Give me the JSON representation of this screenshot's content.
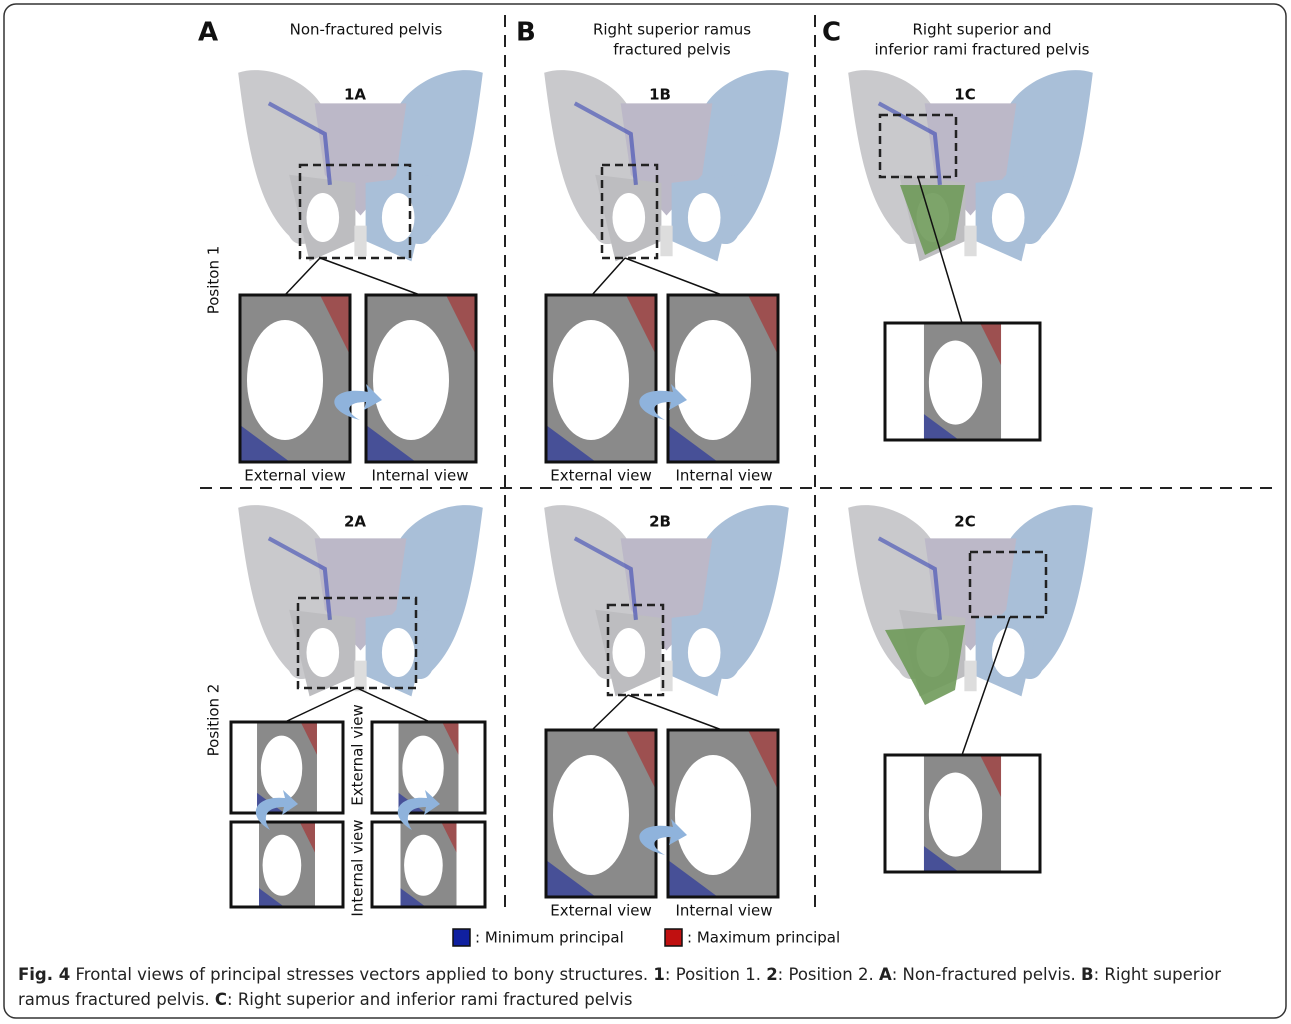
{
  "columns": [
    {
      "letter": "A",
      "title": [
        "Non-fractured pelvis"
      ]
    },
    {
      "letter": "B",
      "title": [
        "Right superior ramus",
        "fractured pelvis"
      ]
    },
    {
      "letter": "C",
      "title": [
        "Right superior and",
        "inferior rami fractured pelvis"
      ]
    }
  ],
  "panels": [
    "1A",
    "1B",
    "1C",
    "2A",
    "2B",
    "2C"
  ],
  "row_labels": [
    "Positon 1",
    "Position 2"
  ],
  "view_labels": {
    "external": "External view",
    "internal": "Internal view"
  },
  "legend": [
    {
      "label": ": Minimum principal",
      "color": "#1020a0"
    },
    {
      "label": ": Maximum principal",
      "color": "#c01010"
    }
  ],
  "caption": [
    {
      "text": "Fig. 4",
      "bold": true
    },
    {
      "text": " Frontal views of principal stresses vectors applied to bony structures. ",
      "bold": false
    },
    {
      "text": "1",
      "bold": true
    },
    {
      "text": ": Position 1. ",
      "bold": false
    },
    {
      "text": "2",
      "bold": true
    },
    {
      "text": ": Position 2. ",
      "bold": false
    },
    {
      "text": "A",
      "bold": true
    },
    {
      "text": ": Non-fractured pelvis. ",
      "bold": false
    },
    {
      "text": "B",
      "bold": true
    },
    {
      "text": ": Right superior ramus fractured pelvis. ",
      "bold": false
    },
    {
      "text": "C",
      "bold": true
    },
    {
      "text": ": Right superior and inferior rami fractured pelvis",
      "bold": false
    }
  ]
}
